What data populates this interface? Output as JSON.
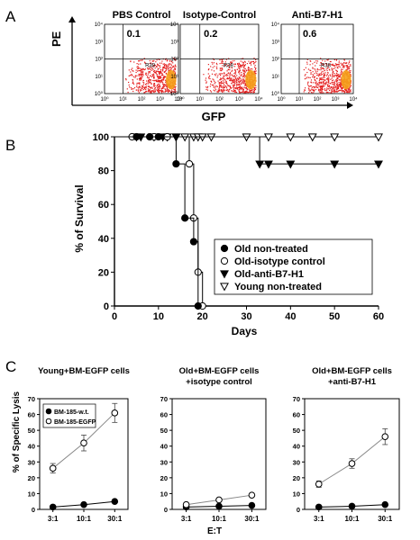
{
  "panel_labels": {
    "a": "A",
    "b": "B",
    "c": "C"
  },
  "colors": {
    "dots": "#e41f1f",
    "dense": "#f5a21a",
    "line": "#000000"
  },
  "chart_data": [
    {
      "type": "scatter",
      "panel": "A",
      "ylabel": "PE",
      "xlabel": "GFP",
      "x_scale": "log",
      "y_scale": "log",
      "xlim": [
        1,
        10000
      ],
      "ylim": [
        1,
        10000
      ],
      "tick_labels": [
        "10⁰",
        "10¹",
        "10²",
        "10³",
        "10⁴"
      ],
      "gate_label": "R38",
      "plots": [
        {
          "title": "PBS Control",
          "value": "0.1"
        },
        {
          "title": "Isotype-Control",
          "value": "0.2"
        },
        {
          "title": "Anti-B7-H1",
          "value": "0.6"
        }
      ]
    },
    {
      "type": "line",
      "panel": "B",
      "xlabel": "Days",
      "ylabel": "% of Survival",
      "xlim": [
        0,
        60
      ],
      "ylim": [
        0,
        100
      ],
      "xticks": [
        0,
        10,
        20,
        30,
        40,
        50,
        60
      ],
      "yticks": [
        0,
        20,
        40,
        60,
        80,
        100
      ],
      "legend_position": "bottom-right",
      "series": [
        {
          "name": "Old non-treated",
          "marker": "circle-filled",
          "steps": [
            [
              0,
              100
            ],
            [
              14,
              100
            ],
            [
              14,
              84
            ],
            [
              16,
              84
            ],
            [
              16,
              52
            ],
            [
              18,
              52
            ],
            [
              18,
              38
            ],
            [
              19,
              38
            ],
            [
              19,
              0
            ]
          ],
          "markers": [
            [
              5,
              100
            ],
            [
              8,
              100
            ],
            [
              10,
              100
            ],
            [
              14,
              84
            ],
            [
              16,
              52
            ],
            [
              18,
              38
            ],
            [
              19,
              0
            ]
          ]
        },
        {
          "name": "Old-isotype control",
          "marker": "circle-open",
          "steps": [
            [
              0,
              100
            ],
            [
              17,
              100
            ],
            [
              17,
              84
            ],
            [
              18,
              84
            ],
            [
              18,
              52
            ],
            [
              19,
              52
            ],
            [
              19,
              20
            ],
            [
              20,
              20
            ],
            [
              20,
              0
            ]
          ],
          "markers": [
            [
              4,
              100
            ],
            [
              9,
              100
            ],
            [
              12,
              100
            ],
            [
              17,
              84
            ],
            [
              18,
              52
            ],
            [
              19,
              20
            ],
            [
              20,
              0
            ]
          ]
        },
        {
          "name": "Old-anti-B7-H1",
          "marker": "triangle-down-filled",
          "steps": [
            [
              0,
              100
            ],
            [
              33,
              100
            ],
            [
              33,
              84
            ],
            [
              60,
              84
            ]
          ],
          "markers": [
            [
              6,
              100
            ],
            [
              11,
              100
            ],
            [
              14,
              100
            ],
            [
              33,
              84
            ],
            [
              35,
              84
            ],
            [
              40,
              84
            ],
            [
              50,
              84
            ],
            [
              60,
              84
            ]
          ]
        },
        {
          "name": "Young non-treated",
          "marker": "triangle-down-open",
          "steps": [
            [
              0,
              100
            ],
            [
              60,
              100
            ]
          ],
          "markers": [
            [
              5,
              100
            ],
            [
              9,
              100
            ],
            [
              12,
              100
            ],
            [
              14,
              100
            ],
            [
              16,
              100
            ],
            [
              18,
              100
            ],
            [
              19,
              100
            ],
            [
              20,
              100
            ],
            [
              22,
              100
            ],
            [
              30,
              100
            ],
            [
              35,
              100
            ],
            [
              40,
              100
            ],
            [
              45,
              100
            ],
            [
              50,
              100
            ],
            [
              60,
              100
            ]
          ]
        }
      ]
    },
    {
      "type": "line",
      "panel": "C",
      "ylabel": "% of Specific Lysis",
      "xlabel": "E:T",
      "categories": [
        "3:1",
        "10:1",
        "30:1"
      ],
      "ylim": [
        0,
        70
      ],
      "yticks": [
        0,
        10,
        20,
        30,
        40,
        50,
        60,
        70
      ],
      "legend": [
        "BM-185-w.t.",
        "BM-185-EGFP"
      ],
      "plots": [
        {
          "title": "Young+BM-EGFP cells",
          "title2": "",
          "series": [
            {
              "name": "BM-185-w.t.",
              "values": [
                1.5,
                3,
                5
              ]
            },
            {
              "name": "BM-185-EGFP",
              "values": [
                26,
                42,
                61
              ],
              "errors": [
                3,
                5,
                6
              ]
            }
          ]
        },
        {
          "title": "Old+BM-EGFP cells",
          "title2": "+isotype control",
          "series": [
            {
              "name": "BM-185-w.t.",
              "values": [
                1.5,
                2,
                2.5
              ]
            },
            {
              "name": "BM-185-EGFP",
              "values": [
                3,
                6,
                9
              ]
            }
          ]
        },
        {
          "title": "Old+BM-EGFP cells",
          "title2": "+anti-B7-H1",
          "series": [
            {
              "name": "BM-185-w.t.",
              "values": [
                1.5,
                2,
                3
              ]
            },
            {
              "name": "BM-185-EGFP",
              "values": [
                16,
                29,
                46
              ],
              "errors": [
                2,
                3,
                5
              ]
            }
          ]
        }
      ]
    }
  ]
}
